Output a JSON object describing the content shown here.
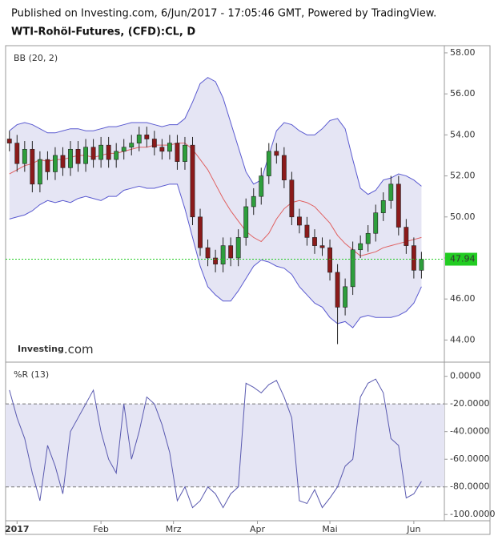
{
  "header": {
    "published": "Published on Investing.com, 6/Jun/2017 - 17:05:46 GMT, Powered by TradingView.",
    "symbol": "WTI-Rohöl-Futures, (CFD):CL, D"
  },
  "logo": {
    "brand": "Investing",
    "suffix": ".com"
  },
  "chart_data": [
    {
      "type": "candlestick",
      "title": "BB (20, 2)",
      "xlim": [
        -0.5,
        57
      ],
      "ylim": [
        43,
        58.35
      ],
      "yticks": [
        {
          "value": 44,
          "label": "44.00"
        },
        {
          "value": 46,
          "label": "46.00"
        },
        {
          "value": 48,
          "label": "48.00"
        },
        {
          "value": 50,
          "label": "50.00"
        },
        {
          "value": 52,
          "label": "52.00"
        },
        {
          "value": 54,
          "label": "54.00"
        },
        {
          "value": 56,
          "label": "56.00"
        },
        {
          "value": 58,
          "label": "58.00"
        }
      ],
      "last_label": "47.94",
      "up_color": "#2e9e3c",
      "down_color": "#8b1a1a",
      "last_color": "#22cc22",
      "candles": {
        "open": [
          53.8,
          53.6,
          52.6,
          53.3,
          51.6,
          52.8,
          52.2,
          53.0,
          52.4,
          53.3,
          52.6,
          53.4,
          52.8,
          53.5,
          52.8,
          53.2,
          53.4,
          53.6,
          54.0,
          53.8,
          53.4,
          53.2,
          53.6,
          52.7,
          53.5,
          50.0,
          48.5,
          48.0,
          47.7,
          48.6,
          48.0,
          49.0,
          50.5,
          51.0,
          52.0,
          53.2,
          53.0,
          51.8,
          50.0,
          49.6,
          49.0,
          48.6,
          48.5,
          47.3,
          45.6,
          46.6,
          48.4,
          48.7,
          49.2,
          50.2,
          50.8,
          51.6,
          49.5,
          48.6,
          47.4
        ],
        "high": [
          54.2,
          54.0,
          53.7,
          53.7,
          53.2,
          53.2,
          53.4,
          53.4,
          53.7,
          53.7,
          53.8,
          53.8,
          53.9,
          53.9,
          53.6,
          53.8,
          54.0,
          54.4,
          54.4,
          54.2,
          53.8,
          54.0,
          54.0,
          53.9,
          53.9,
          50.4,
          48.9,
          48.4,
          49.0,
          49.0,
          49.4,
          50.9,
          51.4,
          52.4,
          53.6,
          53.6,
          53.4,
          52.2,
          50.4,
          50.0,
          49.4,
          49.0,
          48.9,
          47.7,
          47.0,
          48.8,
          49.1,
          49.6,
          50.6,
          51.2,
          52.0,
          52.0,
          49.9,
          49.0,
          48.3
        ],
        "low": [
          53.2,
          52.2,
          52.2,
          51.2,
          51.2,
          51.8,
          51.8,
          52.0,
          52.0,
          52.2,
          52.2,
          52.4,
          52.4,
          52.4,
          52.4,
          52.8,
          53.0,
          53.2,
          53.4,
          53.0,
          52.8,
          52.8,
          52.3,
          52.3,
          49.6,
          48.1,
          47.6,
          47.3,
          47.3,
          47.6,
          47.6,
          48.6,
          50.1,
          50.6,
          51.6,
          52.6,
          51.4,
          49.6,
          49.2,
          48.6,
          48.2,
          48.1,
          46.9,
          43.8,
          45.2,
          46.2,
          48.0,
          48.3,
          48.8,
          49.8,
          50.4,
          49.1,
          48.2,
          47.0,
          47.0
        ],
        "close": [
          53.6,
          52.6,
          53.3,
          51.6,
          52.8,
          52.2,
          53.0,
          52.4,
          53.3,
          52.6,
          53.4,
          52.8,
          53.5,
          52.8,
          53.2,
          53.4,
          53.6,
          54.0,
          53.8,
          53.4,
          53.2,
          53.6,
          52.7,
          53.5,
          50.0,
          48.5,
          48.0,
          47.7,
          48.6,
          48.0,
          49.0,
          50.5,
          51.0,
          52.0,
          53.2,
          53.0,
          51.8,
          50.0,
          49.6,
          49.0,
          48.6,
          48.5,
          47.3,
          45.6,
          46.6,
          48.4,
          48.7,
          49.2,
          50.2,
          50.8,
          51.6,
          49.5,
          48.6,
          47.4,
          47.94
        ]
      },
      "bands": {
        "fill": "#e5e5f4",
        "line_color": "#5a5ad0",
        "middle_color": "#e06060",
        "upper": [
          54.2,
          54.5,
          54.6,
          54.5,
          54.3,
          54.1,
          54.1,
          54.2,
          54.3,
          54.3,
          54.2,
          54.2,
          54.3,
          54.4,
          54.4,
          54.5,
          54.6,
          54.6,
          54.6,
          54.5,
          54.4,
          54.5,
          54.5,
          54.8,
          55.6,
          56.5,
          56.8,
          56.6,
          55.8,
          54.6,
          53.4,
          52.2,
          51.6,
          51.8,
          53.0,
          54.2,
          54.6,
          54.5,
          54.2,
          54.0,
          54.0,
          54.3,
          54.7,
          54.8,
          54.3,
          52.8,
          51.4,
          51.1,
          51.3,
          51.8,
          51.9,
          52.1,
          52.0,
          51.8,
          51.5
        ],
        "middle": [
          52.1,
          52.3,
          52.5,
          52.6,
          52.8,
          52.7,
          52.8,
          52.8,
          52.9,
          53.0,
          53.0,
          52.9,
          53.0,
          53.1,
          53.1,
          53.2,
          53.3,
          53.4,
          53.4,
          53.5,
          53.5,
          53.5,
          53.6,
          53.6,
          53.3,
          52.8,
          52.3,
          51.6,
          50.9,
          50.3,
          49.8,
          49.3,
          49.0,
          48.8,
          49.2,
          49.9,
          50.4,
          50.7,
          50.8,
          50.7,
          50.5,
          50.1,
          49.7,
          49.1,
          48.7,
          48.4,
          48.1,
          48.2,
          48.3,
          48.5,
          48.6,
          48.7,
          48.8,
          48.9,
          49.0
        ],
        "lower": [
          49.9,
          50.0,
          50.1,
          50.3,
          50.6,
          50.8,
          50.7,
          50.8,
          50.7,
          50.9,
          51.0,
          50.9,
          50.8,
          51.0,
          51.0,
          51.3,
          51.4,
          51.5,
          51.4,
          51.4,
          51.5,
          51.6,
          51.6,
          50.4,
          49.0,
          47.6,
          46.6,
          46.2,
          45.9,
          45.9,
          46.4,
          47.0,
          47.6,
          47.9,
          47.8,
          47.6,
          47.5,
          47.2,
          46.6,
          46.2,
          45.8,
          45.6,
          45.1,
          44.8,
          44.9,
          44.6,
          45.1,
          45.2,
          45.1,
          45.1,
          45.1,
          45.2,
          45.4,
          45.8,
          46.6
        ]
      }
    },
    {
      "type": "line",
      "title": "%R (13)",
      "color": "#5a5ab0",
      "band_fill": "#e5e5f4",
      "xlim": [
        -0.5,
        57
      ],
      "ylim": [
        -104.5,
        8.5
      ],
      "levels": [
        -20,
        -80
      ],
      "yticks": [
        {
          "value": 0,
          "label": "0.0000"
        },
        {
          "value": -20,
          "label": "-20.0000"
        },
        {
          "value": -40,
          "label": "-40.0000"
        },
        {
          "value": -60,
          "label": "-60.0000"
        },
        {
          "value": -80,
          "label": "-80.0000"
        },
        {
          "value": -100,
          "label": "-100.0000"
        }
      ],
      "xticks": [
        {
          "value": 1,
          "label": "2017"
        },
        {
          "value": 12,
          "label": "Feb"
        },
        {
          "value": 21.5,
          "label": "Mrz"
        },
        {
          "value": 32.5,
          "label": "Apr"
        },
        {
          "value": 42,
          "label": "Mai"
        },
        {
          "value": 53,
          "label": "Jun"
        }
      ],
      "values": [
        -10,
        -30,
        -45,
        -70,
        -90,
        -50,
        -65,
        -85,
        -40,
        -30,
        -20,
        -10,
        -40,
        -60,
        -70,
        -20,
        -60,
        -40,
        -15,
        -20,
        -35,
        -55,
        -90,
        -80,
        -95,
        -90,
        -80,
        -85,
        -95,
        -85,
        -80,
        -5,
        -8,
        -12,
        -6,
        -3,
        -15,
        -30,
        -90,
        -92,
        -82,
        -95,
        -88,
        -80,
        -65,
        -60,
        -15,
        -5,
        -2,
        -12,
        -45,
        -50,
        -88,
        -85,
        -76
      ]
    }
  ]
}
